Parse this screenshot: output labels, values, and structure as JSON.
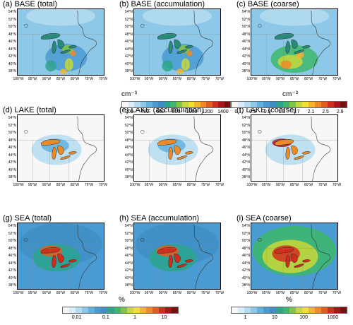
{
  "panels": [
    {
      "title": "(a) BASE (total)",
      "scheme": "base_total"
    },
    {
      "title": "(b) BASE (accumulation)",
      "scheme": "base_acc"
    },
    {
      "title": "(c) BASE (coarse)",
      "scheme": "base_coarse"
    },
    {
      "title": "(d) LAKE (total)",
      "scheme": "lake"
    },
    {
      "title": "(e) LAKE (accumulation)",
      "scheme": "lake"
    },
    {
      "title": "(f) LAKE (coarse)",
      "scheme": "lake_coarse"
    },
    {
      "title": "(g) SEA (total)",
      "scheme": "sea"
    },
    {
      "title": "(h) SEA (accumulation)",
      "scheme": "sea"
    },
    {
      "title": "(i) SEA (coarse)",
      "scheme": "sea_coarse"
    }
  ],
  "lat_labels": [
    "54°N",
    "52°N",
    "50°N",
    "48°N",
    "46°N",
    "44°N",
    "42°N",
    "40°N",
    "38°N"
  ],
  "lon_labels": [
    "100°W",
    "95°W",
    "90°W",
    "85°W",
    "80°W",
    "75°W",
    "70°W"
  ],
  "colorbars": [
    {
      "unit": "cm⁻³",
      "ticks": [
        "200",
        "400",
        "600",
        "800",
        "1000",
        "1200",
        "1400"
      ]
    },
    {
      "unit": "cm⁻³",
      "ticks": [
        "0.1",
        "0.5",
        "0.9",
        "1.3",
        "1.7",
        "2.1",
        "2.5",
        "2.9"
      ]
    },
    {
      "unit": "%",
      "ticks": [
        "0.01",
        "0.1",
        "1",
        "10"
      ]
    },
    {
      "unit": "%",
      "ticks": [
        "1",
        "10",
        "100",
        "1000"
      ]
    }
  ],
  "colors": {
    "palette": [
      "#f7f7f7",
      "#d9ecf7",
      "#b4dcf0",
      "#8dc8e8",
      "#63b1de",
      "#4a9bd1",
      "#3f8fc4",
      "#2ca58d",
      "#3db86b",
      "#7fc646",
      "#c8d838",
      "#f2e030",
      "#f5b52b",
      "#f08a24",
      "#e45c1e",
      "#d02d1c",
      "#a8161b",
      "#7a0e10"
    ],
    "lake_water": "#2a8a7a",
    "coast": "#333333"
  }
}
